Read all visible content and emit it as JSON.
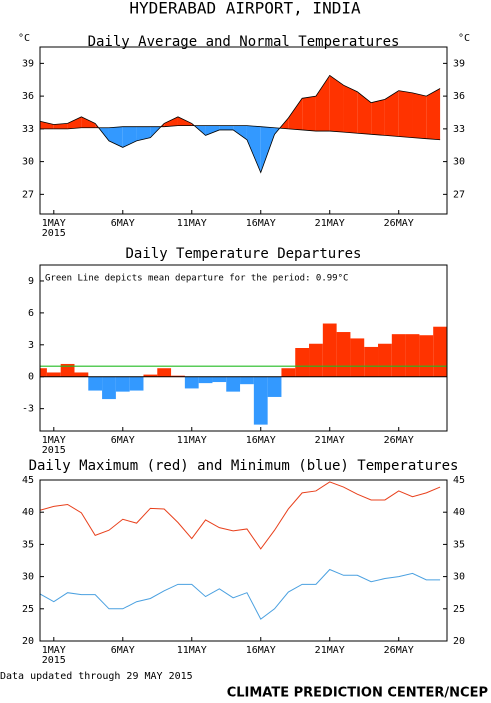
{
  "title": "HYDERABAD AIRPORT, INDIA",
  "footer_left": "Data updated through 29 MAY 2015",
  "footer_right": "CLIMATE PREDICTION CENTER/NCEP",
  "chart_data": [
    {
      "type": "area",
      "title": "Daily Average and Normal Temperatures",
      "y_unit": "°C",
      "right_axis": true,
      "x": [
        0,
        1,
        2,
        3,
        4,
        5,
        6,
        7,
        8,
        9,
        10,
        11,
        12,
        13,
        14,
        15,
        16,
        17,
        18,
        19,
        20,
        21,
        22,
        23,
        24,
        25,
        26,
        27,
        28,
        29
      ],
      "xlim": [
        0,
        29.5
      ],
      "xticks": [
        {
          "value": 1,
          "label": "1MAY"
        },
        {
          "value": 6,
          "label": "6MAY"
        },
        {
          "value": 11,
          "label": "11MAY"
        },
        {
          "value": 16,
          "label": "16MAY"
        },
        {
          "value": 21,
          "label": "21MAY"
        },
        {
          "value": 26,
          "label": "26MAY"
        }
      ],
      "year": "2015",
      "ylim": [
        25.2,
        40.5
      ],
      "yticks": [
        27,
        30,
        33,
        36,
        39
      ],
      "above_color": "#ff3300",
      "below_color": "#3399ff",
      "series": [
        {
          "color": "#000000",
          "values": [
            33.7,
            33.4,
            33.5,
            34.1,
            33.5,
            31.9,
            31.3,
            31.9,
            32.2,
            33.5,
            34.1,
            33.5,
            32.4,
            32.9,
            32.9,
            32.0,
            29.0,
            32.5,
            34.0,
            35.8,
            36.0,
            37.9,
            37.0,
            36.4,
            35.4,
            35.7,
            36.5,
            36.3,
            36.0,
            36.7
          ]
        },
        {
          "color": "#000000",
          "values": [
            33.0,
            33.0,
            33.0,
            33.1,
            33.1,
            33.1,
            33.2,
            33.2,
            33.2,
            33.2,
            33.3,
            33.3,
            33.3,
            33.3,
            33.3,
            33.3,
            33.2,
            33.1,
            33.0,
            32.9,
            32.8,
            32.8,
            32.7,
            32.6,
            32.5,
            32.4,
            32.3,
            32.2,
            32.1,
            32.0
          ]
        }
      ]
    },
    {
      "type": "bar",
      "title": "Daily Temperature Departures",
      "right_axis": false,
      "annotation": "Green Line depicts mean departure for the period: 0.99°C",
      "x": [
        0,
        1,
        2,
        3,
        4,
        5,
        6,
        7,
        8,
        9,
        10,
        11,
        12,
        13,
        14,
        15,
        16,
        17,
        18,
        19,
        20,
        21,
        22,
        23,
        24,
        25,
        26,
        27,
        28,
        29
      ],
      "xlim": [
        0,
        29.5
      ],
      "xticks": [
        {
          "value": 1,
          "label": "1MAY"
        },
        {
          "value": 6,
          "label": "6MAY"
        },
        {
          "value": 11,
          "label": "11MAY"
        },
        {
          "value": 16,
          "label": "16MAY"
        },
        {
          "value": 21,
          "label": "21MAY"
        },
        {
          "value": 26,
          "label": "26MAY"
        }
      ],
      "year": "2015",
      "ylim": [
        -5.1,
        10.5
      ],
      "yticks": [
        -3,
        0,
        3,
        6,
        9
      ],
      "positive_color": "#ff3300",
      "negative_color": "#3399ff",
      "values": [
        0.8,
        0.4,
        1.2,
        0.4,
        -1.3,
        -2.1,
        -1.4,
        -1.3,
        0.2,
        0.8,
        0.1,
        -1.1,
        -0.6,
        -0.5,
        -1.4,
        -0.7,
        -4.5,
        -1.9,
        0.8,
        2.7,
        3.1,
        5.0,
        4.2,
        3.6,
        2.8,
        3.1,
        4.0,
        4.0,
        3.9,
        4.7
      ],
      "mean_value": 0.99,
      "mean_color": "#22bb22"
    },
    {
      "type": "line",
      "title": "Daily Maximum (red) and Minimum (blue) Temperatures",
      "right_axis": true,
      "x": [
        0,
        1,
        2,
        3,
        4,
        5,
        6,
        7,
        8,
        9,
        10,
        11,
        12,
        13,
        14,
        15,
        16,
        17,
        18,
        19,
        20,
        21,
        22,
        23,
        24,
        25,
        26,
        27,
        28,
        29
      ],
      "xlim": [
        0,
        29.5
      ],
      "xticks": [
        {
          "value": 1,
          "label": "1MAY"
        },
        {
          "value": 6,
          "label": "6MAY"
        },
        {
          "value": 11,
          "label": "11MAY"
        },
        {
          "value": 16,
          "label": "16MAY"
        },
        {
          "value": 21,
          "label": "21MAY"
        },
        {
          "value": 26,
          "label": "26MAY"
        }
      ],
      "year": "2015",
      "ylim": [
        20,
        45
      ],
      "yticks": [
        20,
        25,
        30,
        35,
        40,
        45
      ],
      "series": [
        {
          "color": "#e8401c",
          "values": [
            40.3,
            40.9,
            41.2,
            39.9,
            36.4,
            37.2,
            38.9,
            38.3,
            40.6,
            40.5,
            38.4,
            35.9,
            38.8,
            37.6,
            37.1,
            37.4,
            34.3,
            37.2,
            40.5,
            43.0,
            43.3,
            44.7,
            43.9,
            42.8,
            41.9,
            41.9,
            43.3,
            42.4,
            43.0,
            43.9
          ]
        },
        {
          "color": "#4aa0e0",
          "values": [
            27.3,
            26.1,
            27.5,
            27.2,
            27.2,
            25.0,
            25.0,
            26.1,
            26.6,
            27.8,
            28.8,
            28.8,
            26.9,
            28.1,
            26.7,
            27.5,
            23.4,
            25.0,
            27.6,
            28.8,
            28.8,
            31.1,
            30.2,
            30.2,
            29.2,
            29.7,
            30.0,
            30.5,
            29.5,
            29.5
          ]
        }
      ]
    }
  ]
}
